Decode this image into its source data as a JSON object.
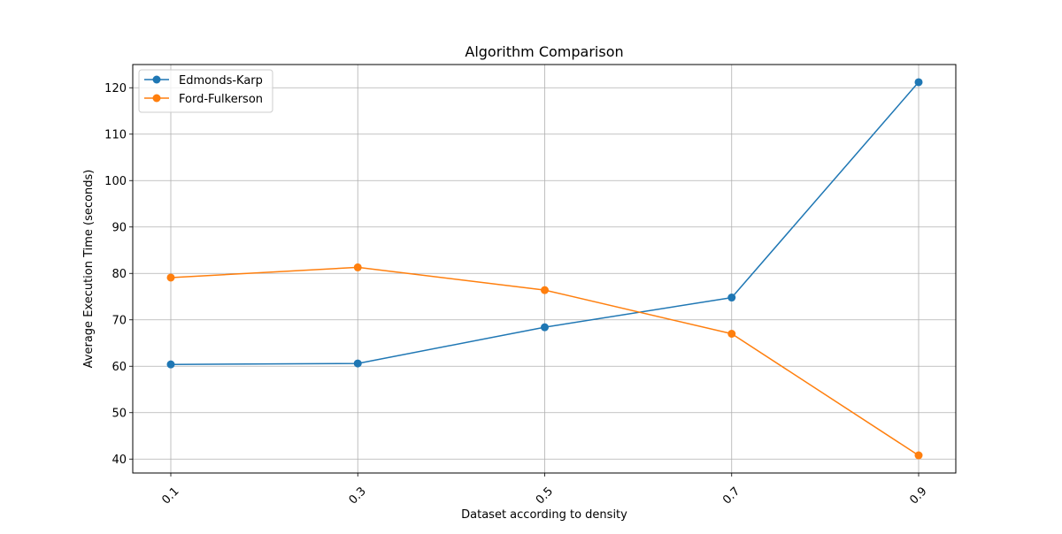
{
  "chart_data": {
    "type": "line",
    "title": "Algorithm Comparison",
    "xlabel": "Dataset according to density",
    "ylabel": "Average Execution Time (seconds)",
    "categories": [
      "0.1",
      "0.3",
      "0.5",
      "0.7",
      "0.9"
    ],
    "yticks": [
      "40",
      "50",
      "60",
      "70",
      "80",
      "90",
      "100",
      "110",
      "120"
    ],
    "ylim": [
      37,
      125
    ],
    "grid": true,
    "legend_position": "top-left",
    "series": [
      {
        "name": "Edmonds-Karp",
        "color": "#1f77b4",
        "marker": "circle",
        "values": [
          60.4,
          60.6,
          68.4,
          74.8,
          121.2
        ]
      },
      {
        "name": "Ford-Fulkerson",
        "color": "#ff7f0e",
        "marker": "circle",
        "values": [
          79.1,
          81.3,
          76.4,
          67.0,
          40.8
        ]
      }
    ]
  }
}
